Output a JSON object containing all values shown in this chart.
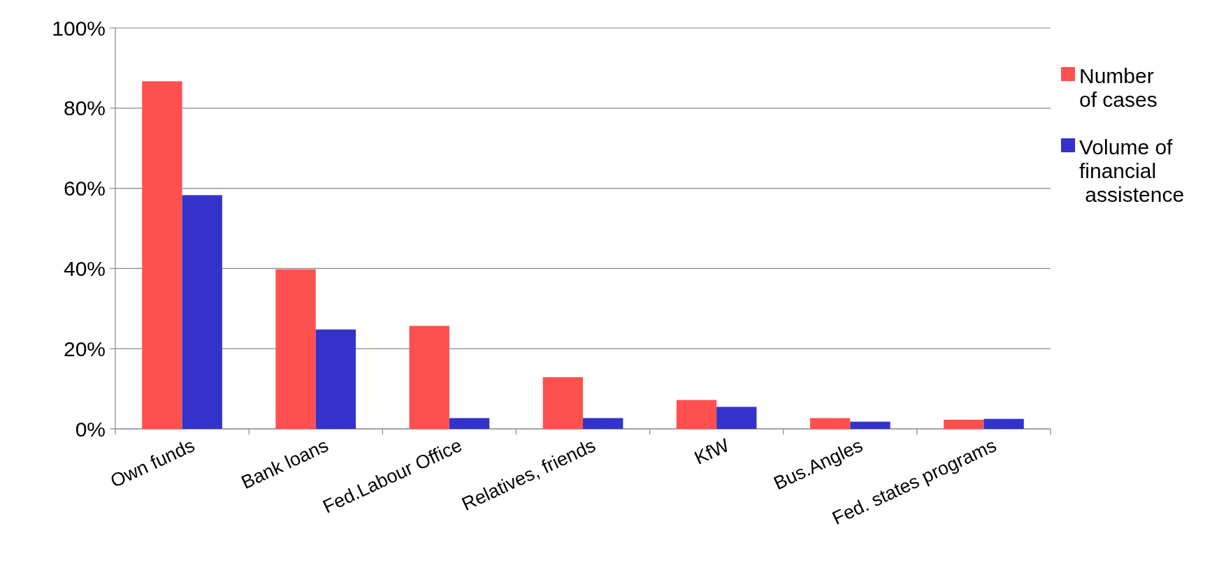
{
  "chart_data": {
    "type": "bar",
    "categories": [
      "Own funds",
      "Bank loans",
      "Fed.Labour Office",
      "Relatives, friends",
      "KfW",
      "Bus.Angles",
      "Fed. states programs"
    ],
    "series": [
      {
        "name": "Number\nof cases",
        "color": "#ff5050",
        "values": [
          86.7,
          39.8,
          25.7,
          12.9,
          7.2,
          2.7,
          2.3
        ]
      },
      {
        "name": "Volume of\nfinancial\n assistence",
        "color": "#3333cc",
        "values": [
          58.3,
          24.8,
          2.7,
          2.7,
          5.5,
          1.8,
          2.5
        ]
      }
    ],
    "ylim": [
      0,
      100
    ],
    "yticks": [
      {
        "value": 0,
        "label": "0%"
      },
      {
        "value": 20,
        "label": "20%"
      },
      {
        "value": 40,
        "label": "40%"
      },
      {
        "value": 60,
        "label": "60%"
      },
      {
        "value": 80,
        "label": "80%"
      },
      {
        "value": 100,
        "label": "100%"
      }
    ],
    "grid": "y",
    "legend": "right"
  }
}
